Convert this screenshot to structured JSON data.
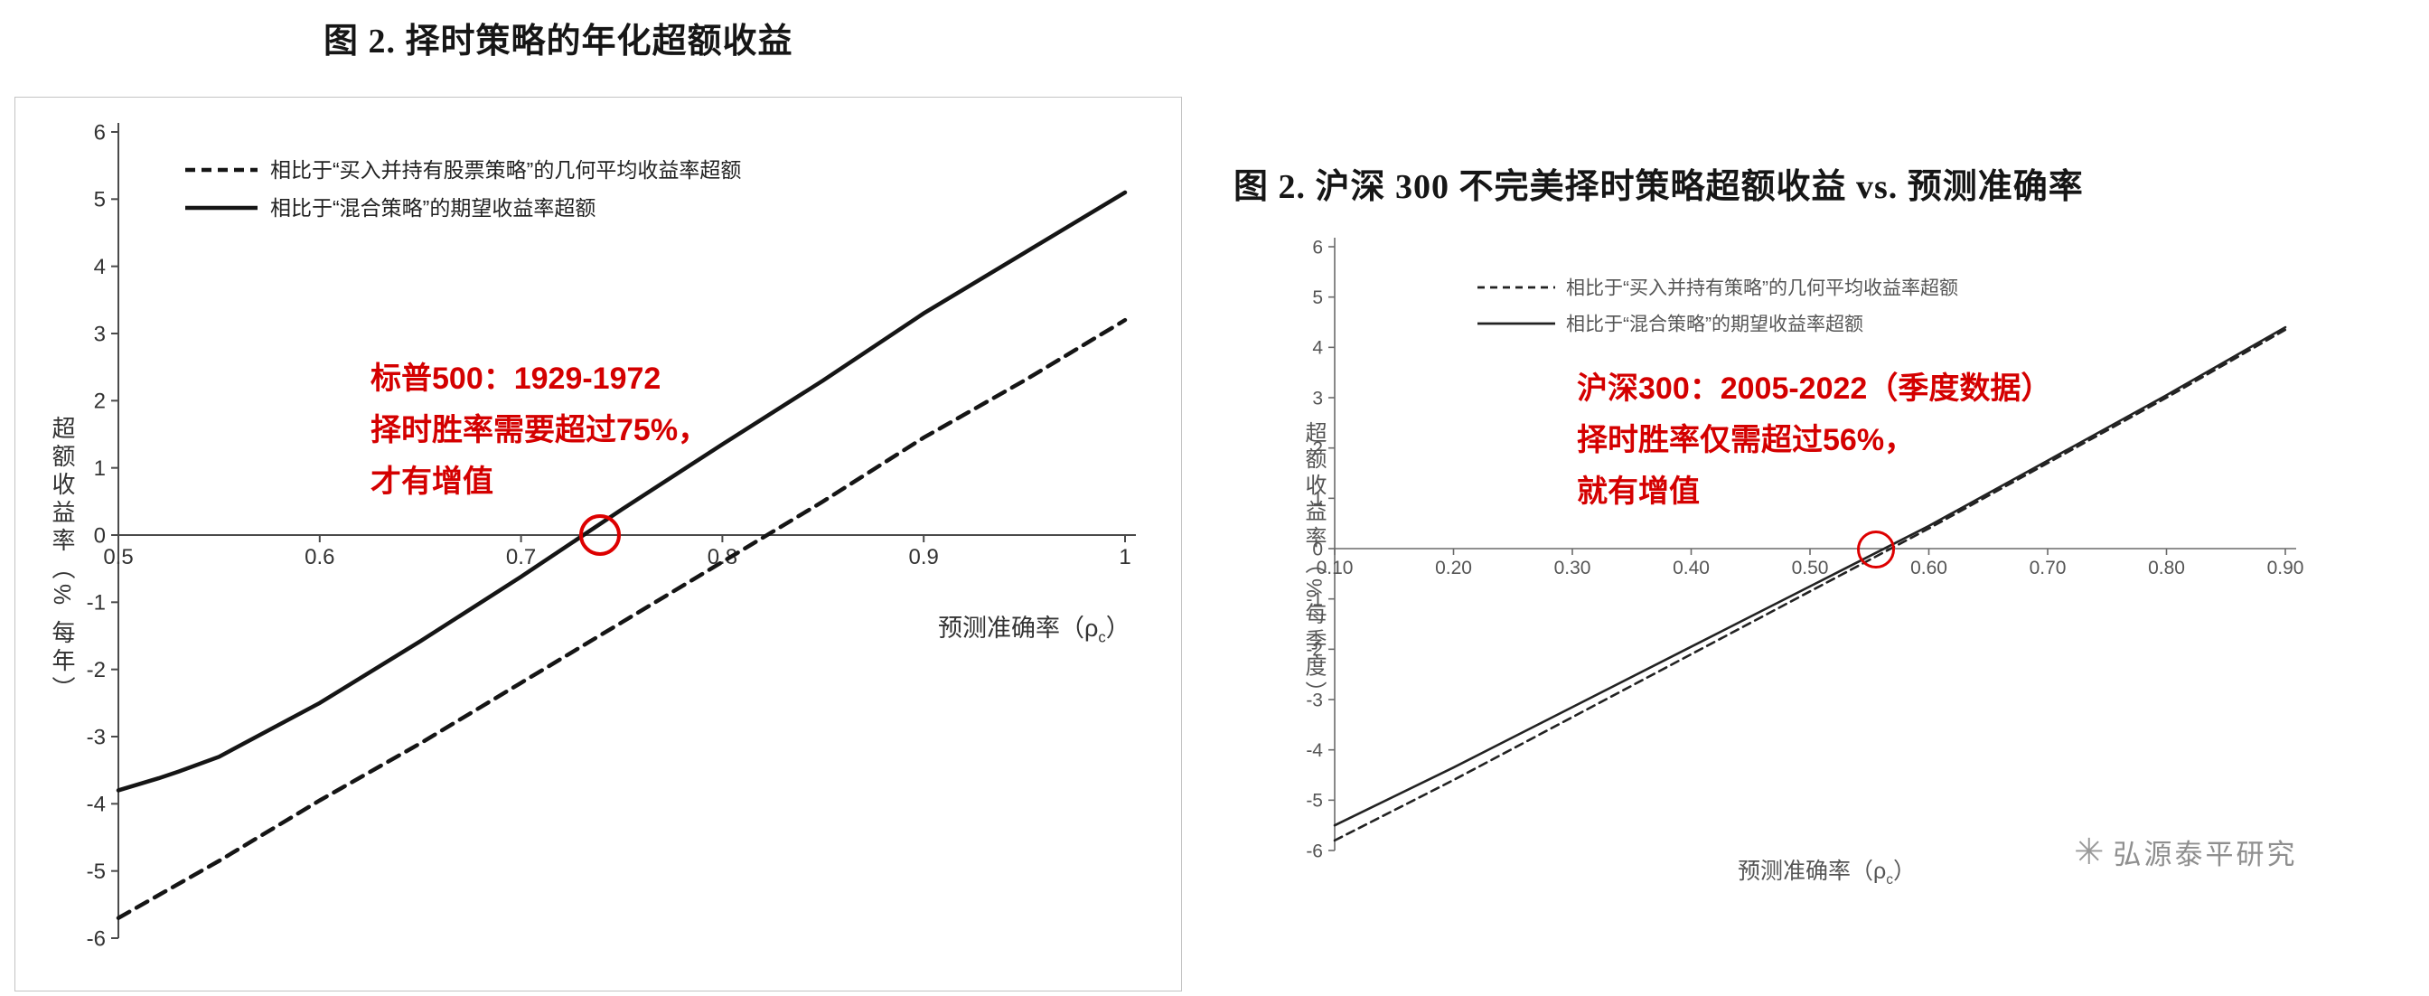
{
  "colors": {
    "annotation_red": "#d40000",
    "line_black": "#151515",
    "axis_gray_left": "#4a4a4a",
    "axis_gray_right": "#6a6a6a",
    "tick_text_left": "#333333",
    "tick_text_right": "#555555",
    "watermark_gray": "#8f8f8f",
    "box_border": "#c3c3c3"
  },
  "panels": {
    "left": {
      "title": "图 2. 择时策略的年化超额收益",
      "ylabel": "超额收益率（% 每年）",
      "xlabel_parts": {
        "pre": "预测准确率（ρ",
        "sub": "c",
        "post": "）"
      },
      "annotation_lines": [
        "标普500：1929-1972",
        "择时胜率需要超过75%，",
        "才有增值"
      ]
    },
    "right": {
      "title": "图 2. 沪深 300 不完美择时策略超额收益 vs. 预测准确率",
      "ylabel": "超额收益率（%每季度）",
      "xlabel_parts": {
        "pre": "预测准确率（ρ",
        "sub": "c",
        "post": "）"
      },
      "annotation_lines": [
        "沪深300：2005-2022（季度数据）",
        "择时胜率仅需超过56%，",
        "就有增值"
      ],
      "watermark_text": "弘源泰平研究",
      "watermark_icon": "star-asterisk-logo-icon",
      "watermark_glyph": "✳"
    }
  },
  "chart_data": [
    {
      "type": "line",
      "title": "图 2. 择时策略的年化超额收益",
      "xlabel": "预测准确率（ρc）",
      "ylabel": "超额收益率（% 每年）",
      "xlim": [
        0.5,
        1.0
      ],
      "ylim": [
        -6,
        6
      ],
      "x_ticks": [
        0.5,
        0.6,
        0.7,
        0.8,
        0.9,
        1.0
      ],
      "x_tick_labels": [
        "0.5",
        "0.6",
        "0.7",
        "0.8",
        "0.9",
        "1"
      ],
      "y_ticks": [
        6,
        5,
        4,
        3,
        2,
        1,
        0,
        -1,
        -2,
        -3,
        -4,
        -5,
        -6
      ],
      "grid": false,
      "legend_position": "inside-top-left",
      "series": [
        {
          "name": "相比于“买入并持有股票策略”的几何平均收益率超额",
          "style": "dashed",
          "x": [
            0.5,
            0.55,
            0.6,
            0.65,
            0.7,
            0.75,
            0.8,
            0.85,
            0.9,
            0.95,
            1.0
          ],
          "y": [
            -5.7,
            -4.85,
            -3.95,
            -3.1,
            -2.2,
            -1.3,
            -0.4,
            0.5,
            1.45,
            2.3,
            3.2
          ]
        },
        {
          "name": "相比于“混合策略”的期望收益率超额",
          "style": "solid",
          "x": [
            0.5,
            0.52,
            0.53,
            0.55,
            0.6,
            0.65,
            0.7,
            0.75,
            0.8,
            0.85,
            0.9,
            0.95,
            1.0
          ],
          "y": [
            -3.8,
            -3.62,
            -3.52,
            -3.3,
            -2.5,
            -1.58,
            -0.62,
            0.38,
            1.35,
            2.3,
            3.3,
            4.2,
            5.1
          ]
        }
      ],
      "zero_crossing_x": 0.73
    },
    {
      "type": "line",
      "title": "图 2. 沪深 300 不完美择时策略超额收益 vs. 预测准确率",
      "xlabel": "预测准确率（ρc）",
      "ylabel": "超额收益率（%每季度）",
      "xlim": [
        0.1,
        0.9
      ],
      "ylim": [
        -6,
        6
      ],
      "x_ticks": [
        0.1,
        0.2,
        0.3,
        0.4,
        0.5,
        0.6,
        0.7,
        0.8,
        0.9
      ],
      "x_tick_labels": [
        "0.10",
        "0.20",
        "0.30",
        "0.40",
        "0.50",
        "0.60",
        "0.70",
        "0.80",
        "0.90"
      ],
      "y_ticks": [
        6,
        5,
        4,
        3,
        2,
        1,
        0,
        -1,
        -2,
        -3,
        -4,
        -5,
        -6
      ],
      "grid": false,
      "legend_position": "inside-top-left",
      "series": [
        {
          "name": "相比于“买入并持有策略”的几何平均收益率超额",
          "style": "dashed",
          "x": [
            0.1,
            0.2,
            0.3,
            0.4,
            0.5,
            0.6,
            0.7,
            0.8,
            0.9
          ],
          "y": [
            -5.8,
            -4.6,
            -3.35,
            -2.1,
            -0.85,
            0.4,
            1.7,
            3.0,
            4.35
          ]
        },
        {
          "name": "相比于“混合策略”的期望收益率超额",
          "style": "solid",
          "x": [
            0.1,
            0.2,
            0.3,
            0.4,
            0.5,
            0.6,
            0.7,
            0.8,
            0.9
          ],
          "y": [
            -5.5,
            -4.35,
            -3.15,
            -1.95,
            -0.75,
            0.45,
            1.75,
            3.05,
            4.4
          ]
        }
      ],
      "zero_crossing_x": 0.56
    }
  ]
}
